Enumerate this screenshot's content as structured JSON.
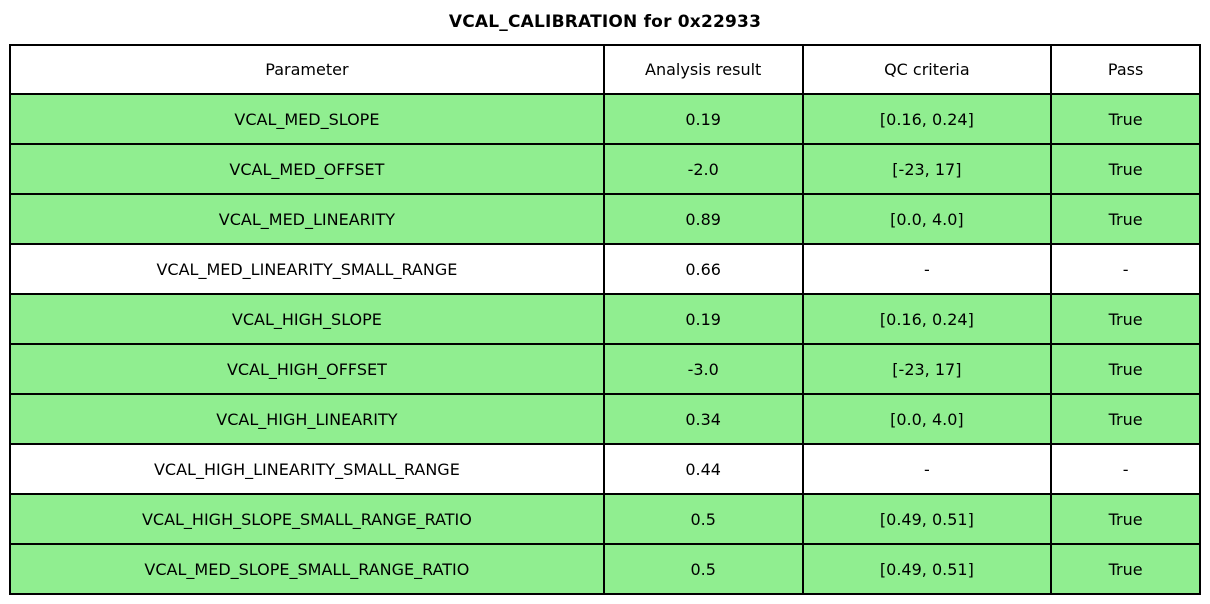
{
  "title": "VCAL_CALIBRATION for 0x22933",
  "chart_data": {
    "type": "table",
    "title": "VCAL_CALIBRATION for 0x22933",
    "columns": [
      "Parameter",
      "Analysis result",
      "QC criteria",
      "Pass"
    ],
    "rows": [
      {
        "parameter": "VCAL_MED_SLOPE",
        "analysis_result": "0.19",
        "qc_criteria": "[0.16, 0.24]",
        "pass": "True",
        "highlighted": true
      },
      {
        "parameter": "VCAL_MED_OFFSET",
        "analysis_result": "-2.0",
        "qc_criteria": "[-23, 17]",
        "pass": "True",
        "highlighted": true
      },
      {
        "parameter": "VCAL_MED_LINEARITY",
        "analysis_result": "0.89",
        "qc_criteria": "[0.0, 4.0]",
        "pass": "True",
        "highlighted": true
      },
      {
        "parameter": "VCAL_MED_LINEARITY_SMALL_RANGE",
        "analysis_result": "0.66",
        "qc_criteria": "-",
        "pass": "-",
        "highlighted": false
      },
      {
        "parameter": "VCAL_HIGH_SLOPE",
        "analysis_result": "0.19",
        "qc_criteria": "[0.16, 0.24]",
        "pass": "True",
        "highlighted": true
      },
      {
        "parameter": "VCAL_HIGH_OFFSET",
        "analysis_result": "-3.0",
        "qc_criteria": "[-23, 17]",
        "pass": "True",
        "highlighted": true
      },
      {
        "parameter": "VCAL_HIGH_LINEARITY",
        "analysis_result": "0.34",
        "qc_criteria": "[0.0, 4.0]",
        "pass": "True",
        "highlighted": true
      },
      {
        "parameter": "VCAL_HIGH_LINEARITY_SMALL_RANGE",
        "analysis_result": "0.44",
        "qc_criteria": "-",
        "pass": "-",
        "highlighted": false
      },
      {
        "parameter": "VCAL_HIGH_SLOPE_SMALL_RANGE_RATIO",
        "analysis_result": "0.5",
        "qc_criteria": "[0.49, 0.51]",
        "pass": "True",
        "highlighted": true
      },
      {
        "parameter": "VCAL_MED_SLOPE_SMALL_RANGE_RATIO",
        "analysis_result": "0.5",
        "qc_criteria": "[0.49, 0.51]",
        "pass": "True",
        "highlighted": true
      }
    ],
    "layout": {
      "legend": "none",
      "grid": "full-borders",
      "header_bg": "#ffffff",
      "pass_row_bg": "#90ee90",
      "na_row_bg": "#ffffff",
      "border_color": "#000000",
      "text_color": "#000000"
    }
  }
}
